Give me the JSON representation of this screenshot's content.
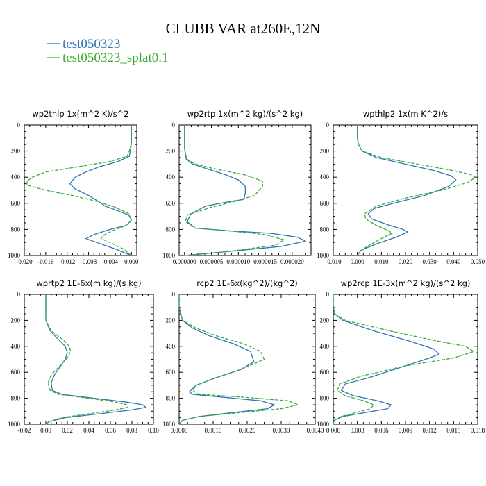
{
  "figure": {
    "title": "CLUBB VAR at260E,12N",
    "legend": [
      {
        "label": "test050323",
        "color": "#2e75b6",
        "dash": false
      },
      {
        "label": "test050323_splat0.1",
        "color": "#3aaa35",
        "dash": true
      }
    ]
  },
  "chart_data": [
    {
      "type": "line",
      "title": "wp2thlp   1x(m^2 K)/s^2",
      "orientation": "profile",
      "xticks": [
        -0.02,
        -0.016,
        -0.012,
        -0.008,
        -0.004,
        0.0
      ],
      "xtick_labels": [
        "-0.020",
        "-0.016",
        "-0.012",
        "-0.008",
        "-0.004",
        "0.000"
      ],
      "xlim": [
        -0.02,
        0.001
      ],
      "yticks": [
        0,
        200,
        400,
        600,
        800,
        1000
      ],
      "ylim": [
        0,
        1000
      ],
      "series": [
        {
          "name": "test050323",
          "color": "#2e75b6",
          "x": [
            0.0,
            0.0,
            0.0,
            -0.0002,
            -0.0004,
            -0.0025,
            -0.006,
            -0.0085,
            -0.0105,
            -0.0115,
            -0.0105,
            -0.008,
            -0.006,
            -0.005,
            -0.003,
            -0.0005,
            0.0,
            -0.001,
            -0.004,
            -0.007,
            -0.0085,
            -0.0065,
            -0.003,
            0.0
          ],
          "y": [
            0,
            100,
            140,
            200,
            240,
            280,
            320,
            360,
            400,
            450,
            490,
            540,
            590,
            620,
            650,
            690,
            730,
            770,
            800,
            840,
            870,
            900,
            950,
            1000
          ]
        },
        {
          "name": "test050323_splat0.1",
          "color": "#3aaa35",
          "x": [
            0.0,
            0.0,
            0.0,
            -0.0004,
            -0.0008,
            -0.004,
            -0.01,
            -0.016,
            -0.0185,
            -0.0195,
            -0.0195,
            -0.016,
            -0.011,
            -0.007,
            -0.003,
            -0.0005,
            0.0,
            -0.001,
            -0.003,
            -0.005,
            -0.0057,
            -0.004,
            -0.0015,
            0.0
          ],
          "y": [
            0,
            100,
            140,
            200,
            240,
            280,
            320,
            360,
            400,
            430,
            460,
            500,
            540,
            580,
            630,
            680,
            730,
            770,
            800,
            840,
            870,
            900,
            950,
            1000
          ]
        }
      ]
    },
    {
      "type": "line",
      "title": "wp2rtp   1x(m^2 kg)/(s^2 kg)",
      "orientation": "profile",
      "xticks": [
        0.0,
        5e-06,
        1e-05,
        1.5e-05,
        2e-05
      ],
      "xtick_labels": [
        "0.000000",
        "0.000005",
        "0.000010",
        "0.000015",
        "0.000020"
      ],
      "xlim": [
        -1e-06,
        2.35e-05
      ],
      "yticks": [
        0,
        200,
        400,
        600,
        800,
        1000
      ],
      "ylim": [
        0,
        1000
      ],
      "series": [
        {
          "name": "test050323",
          "color": "#2e75b6",
          "x": [
            0.0,
            0.0,
            0.0,
            3e-07,
            1.5e-06,
            4.5e-06,
            7.5e-06,
            1e-05,
            1.13e-05,
            1.13e-05,
            1.1e-05,
            8e-06,
            4e-06,
            1.2e-06,
            5e-07,
            2e-06,
            8e-06,
            1.6e-05,
            2.1e-05,
            2.25e-05,
            1.8e-05,
            8e-06,
            0.0
          ],
          "y": [
            0,
            100,
            180,
            260,
            300,
            340,
            380,
            420,
            470,
            520,
            570,
            590,
            620,
            680,
            740,
            790,
            810,
            830,
            860,
            890,
            930,
            970,
            1000
          ]
        },
        {
          "name": "test050323_splat0.1",
          "color": "#3aaa35",
          "x": [
            0.0,
            0.0,
            0.0,
            4e-07,
            2e-06,
            6e-06,
            1.1e-05,
            1.45e-05,
            1.45e-05,
            1.3e-05,
            9e-06,
            5e-06,
            5e-07,
            2e-07,
            2e-06,
            8e-06,
            1.5e-05,
            1.85e-05,
            1.7e-05,
            8e-06,
            0.0
          ],
          "y": [
            0,
            100,
            180,
            260,
            300,
            340,
            380,
            430,
            470,
            540,
            590,
            630,
            690,
            740,
            790,
            810,
            840,
            880,
            920,
            970,
            1000
          ]
        }
      ]
    },
    {
      "type": "line",
      "title": "wpthlp2   1x(m K^2)/s",
      "orientation": "profile",
      "xticks": [
        -0.01,
        0.0,
        0.01,
        0.02,
        0.03,
        0.04,
        0.05
      ],
      "xtick_labels": [
        "-0.010",
        "0.000",
        "0.010",
        "0.020",
        "0.030",
        "0.040",
        "0.050"
      ],
      "xlim": [
        -0.01,
        0.05
      ],
      "yticks": [
        0,
        200,
        400,
        600,
        800,
        1000
      ],
      "ylim": [
        0,
        1000
      ],
      "series": [
        {
          "name": "test050323",
          "color": "#2e75b6",
          "x": [
            0.0,
            0.0,
            0.0005,
            0.002,
            0.008,
            0.02,
            0.032,
            0.039,
            0.041,
            0.038,
            0.028,
            0.015,
            0.007,
            0.0045,
            0.006,
            0.012,
            0.019,
            0.021,
            0.016,
            0.008,
            0.0015,
            0.0
          ],
          "y": [
            0,
            100,
            150,
            200,
            250,
            300,
            350,
            390,
            420,
            470,
            540,
            600,
            640,
            680,
            720,
            760,
            800,
            820,
            860,
            910,
            960,
            1000
          ]
        },
        {
          "name": "test050323_splat0.1",
          "color": "#3aaa35",
          "x": [
            0.0,
            0.0,
            0.0005,
            0.002,
            0.01,
            0.025,
            0.04,
            0.047,
            0.049,
            0.046,
            0.035,
            0.02,
            0.008,
            0.003,
            0.0035,
            0.008,
            0.013,
            0.0145,
            0.011,
            0.006,
            0.0015,
            0.0
          ],
          "y": [
            0,
            100,
            150,
            200,
            250,
            300,
            350,
            380,
            400,
            440,
            500,
            560,
            620,
            680,
            720,
            770,
            810,
            830,
            860,
            910,
            960,
            1000
          ]
        }
      ]
    },
    {
      "type": "line",
      "title": "wprtp2   1E-6x(m kg)/(s kg)",
      "orientation": "profile",
      "xticks": [
        -0.02,
        0.0,
        0.02,
        0.04,
        0.06,
        0.08,
        0.1
      ],
      "xtick_labels": [
        "-0.02",
        "0.00",
        "0.02",
        "0.04",
        "0.06",
        "0.08",
        "0.10"
      ],
      "xlim": [
        -0.02,
        0.1
      ],
      "yticks": [
        0,
        200,
        400,
        600,
        800,
        1000
      ],
      "ylim": [
        0,
        1000
      ],
      "series": [
        {
          "name": "test050323",
          "color": "#2e75b6",
          "x": [
            0.0,
            0.0,
            0.0,
            0.004,
            0.012,
            0.018,
            0.02,
            0.018,
            0.013,
            0.008,
            0.005,
            0.006,
            0.015,
            0.045,
            0.075,
            0.09,
            0.093,
            0.08,
            0.05,
            0.018,
            0.003,
            0.0
          ],
          "y": [
            0,
            100,
            200,
            280,
            350,
            400,
            450,
            500,
            560,
            620,
            680,
            740,
            770,
            800,
            830,
            850,
            870,
            890,
            920,
            950,
            980,
            1000
          ]
        },
        {
          "name": "test050323_splat0.1",
          "color": "#3aaa35",
          "x": [
            0.0,
            0.0,
            0.0,
            0.005,
            0.016,
            0.022,
            0.023,
            0.02,
            0.012,
            0.005,
            0.002,
            0.004,
            0.012,
            0.04,
            0.065,
            0.075,
            0.076,
            0.065,
            0.04,
            0.015,
            0.003,
            0.0
          ],
          "y": [
            0,
            100,
            200,
            280,
            350,
            400,
            440,
            490,
            560,
            620,
            680,
            740,
            770,
            800,
            830,
            850,
            870,
            890,
            920,
            950,
            980,
            1000
          ]
        }
      ]
    },
    {
      "type": "line",
      "title": "rcp2   1E-6x(kg^2)/(kg^2)",
      "orientation": "profile",
      "xticks": [
        0.0,
        0.001,
        0.002,
        0.003,
        0.004
      ],
      "xtick_labels": [
        "0.0000",
        "0.0010",
        "0.0020",
        "0.0030",
        "0.0040"
      ],
      "xlim": [
        0.0,
        0.004
      ],
      "yticks": [
        0,
        200,
        400,
        600,
        800,
        1000
      ],
      "ylim": [
        0,
        1000
      ],
      "series": [
        {
          "name": "test050323",
          "color": "#2e75b6",
          "x": [
            0.0,
            0.0,
            0.0001,
            0.0004,
            0.0009,
            0.0016,
            0.0021,
            0.0022,
            0.0018,
            0.0011,
            0.0005,
            0.0003,
            0.0004,
            0.0012,
            0.0024,
            0.0028,
            0.0026,
            0.0016,
            0.0006,
            0.0001,
            0.0
          ],
          "y": [
            0,
            100,
            200,
            260,
            320,
            380,
            440,
            520,
            580,
            640,
            700,
            750,
            770,
            790,
            820,
            850,
            880,
            910,
            940,
            970,
            1000
          ]
        },
        {
          "name": "test050323_splat0.1",
          "color": "#3aaa35",
          "x": [
            0.0,
            0.0,
            0.0001,
            0.0005,
            0.0011,
            0.0019,
            0.0024,
            0.0025,
            0.0019,
            0.0011,
            0.0005,
            0.0004,
            0.0006,
            0.0018,
            0.0032,
            0.0035,
            0.003,
            0.0018,
            0.0006,
            0.0001,
            0.0
          ],
          "y": [
            0,
            100,
            200,
            260,
            320,
            380,
            440,
            500,
            570,
            640,
            700,
            740,
            770,
            790,
            820,
            850,
            880,
            910,
            940,
            970,
            1000
          ]
        }
      ]
    },
    {
      "type": "line",
      "title": "wp2rcp   1E-3x(m^2 kg)/(s^2 kg)",
      "orientation": "profile",
      "xticks": [
        0.0,
        0.003,
        0.006,
        0.009,
        0.012,
        0.015,
        0.018
      ],
      "xtick_labels": [
        "0.000",
        "0.003",
        "0.006",
        "0.009",
        "0.012",
        "0.015",
        "0.018"
      ],
      "xlim": [
        0.0,
        0.018
      ],
      "yticks": [
        0,
        200,
        400,
        600,
        800,
        1000
      ],
      "ylim": [
        0,
        1000
      ],
      "series": [
        {
          "name": "test050323",
          "color": "#2e75b6",
          "x": [
            0.0,
            0.0,
            0.0002,
            0.0012,
            0.005,
            0.0095,
            0.0125,
            0.0132,
            0.012,
            0.0085,
            0.0045,
            0.0015,
            0.001,
            0.0025,
            0.0055,
            0.0072,
            0.0068,
            0.004,
            0.0012,
            0.0001,
            0.0
          ],
          "y": [
            0,
            100,
            150,
            200,
            280,
            360,
            420,
            460,
            490,
            560,
            640,
            690,
            740,
            780,
            820,
            850,
            880,
            910,
            940,
            970,
            1000
          ]
        },
        {
          "name": "test050323_splat0.1",
          "color": "#3aaa35",
          "x": [
            0.0,
            0.0,
            0.0002,
            0.0015,
            0.007,
            0.013,
            0.0165,
            0.0175,
            0.015,
            0.009,
            0.0035,
            0.0008,
            0.0005,
            0.0015,
            0.0038,
            0.005,
            0.0047,
            0.0028,
            0.001,
            0.0001,
            0.0
          ],
          "y": [
            0,
            100,
            150,
            200,
            280,
            360,
            400,
            440,
            490,
            550,
            630,
            690,
            740,
            780,
            820,
            850,
            880,
            910,
            940,
            970,
            1000
          ]
        }
      ]
    }
  ]
}
